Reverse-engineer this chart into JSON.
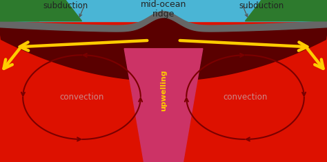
{
  "fig_width": 4.74,
  "fig_height": 2.36,
  "dpi": 100,
  "ocean_color": "#4ab5d5",
  "land_color": "#2d7a2d",
  "gray_color": "#666666",
  "dark_maroon_color": "#5a0000",
  "mantle_red_color": "#dd1100",
  "upwell_pink_color": "#cc3366",
  "arrow_dark_color": "#7a0000",
  "yellow_color": "#ffcc00",
  "text_dark": "#222222",
  "convection_text_color": "#cc8888",
  "upwelling_text_color": "#ffcc00",
  "title_left": "subduction",
  "title_center": "mid-ocean\nridge",
  "title_right": "subduction",
  "label_upwelling": "upwelling",
  "label_convection": "convection"
}
